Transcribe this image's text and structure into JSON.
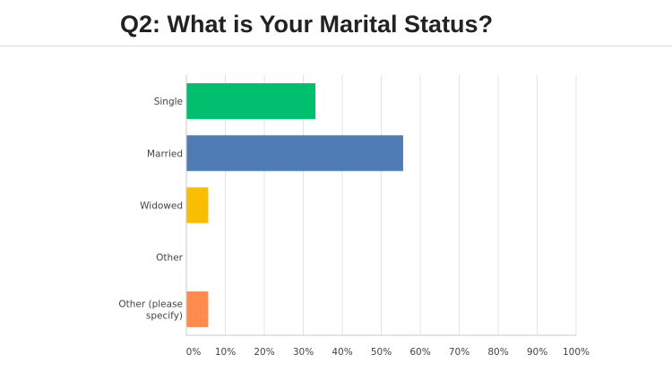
{
  "title": "Q2: What is Your Marital Status?",
  "chart_data": {
    "type": "bar",
    "orientation": "horizontal",
    "categories": [
      [
        "Single"
      ],
      [
        "Married"
      ],
      [
        "Widowed"
      ],
      [
        "Other"
      ],
      [
        "Other (please",
        "specify)"
      ]
    ],
    "values": [
      33,
      55.5,
      5.5,
      0,
      5.5
    ],
    "colors": [
      "#00bf6f",
      "#507cb6",
      "#f9be00",
      "#6bc8cd",
      "#ff8b4f"
    ],
    "xlim": [
      0,
      100
    ],
    "xticks": [
      0,
      10,
      20,
      30,
      40,
      50,
      60,
      70,
      80,
      90,
      100
    ],
    "xtick_labels": [
      "0%",
      "10%",
      "20%",
      "30%",
      "40%",
      "50%",
      "60%",
      "70%",
      "80%",
      "90%",
      "100%"
    ],
    "grid": "vertical"
  }
}
